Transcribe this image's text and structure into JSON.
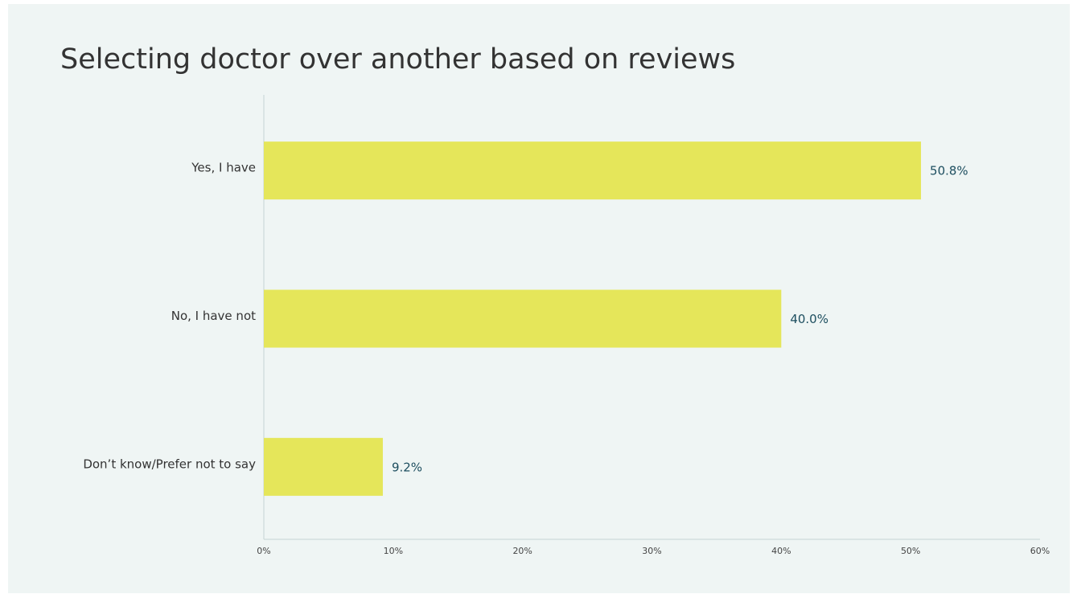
{
  "chart_data": {
    "type": "hbar",
    "title": "Selecting doctor over another based on reviews",
    "categories": [
      "Yes, I have",
      "No, I have not",
      "Don’t know/Prefer not to say"
    ],
    "values": [
      50.8,
      40.0,
      9.2
    ],
    "value_labels": [
      "50.8%",
      "40.0%",
      "9.2%"
    ],
    "color": "#e5e65a",
    "xlim": [
      0,
      60
    ],
    "xticks": [
      {
        "value": 0,
        "label": "0%"
      },
      {
        "value": 10,
        "label": "10%"
      },
      {
        "value": 20,
        "label": "20%"
      },
      {
        "value": 30,
        "label": "30%"
      },
      {
        "value": 40,
        "label": "40%"
      },
      {
        "value": 50,
        "label": "50%"
      },
      {
        "value": 60,
        "label": "60%"
      }
    ]
  }
}
